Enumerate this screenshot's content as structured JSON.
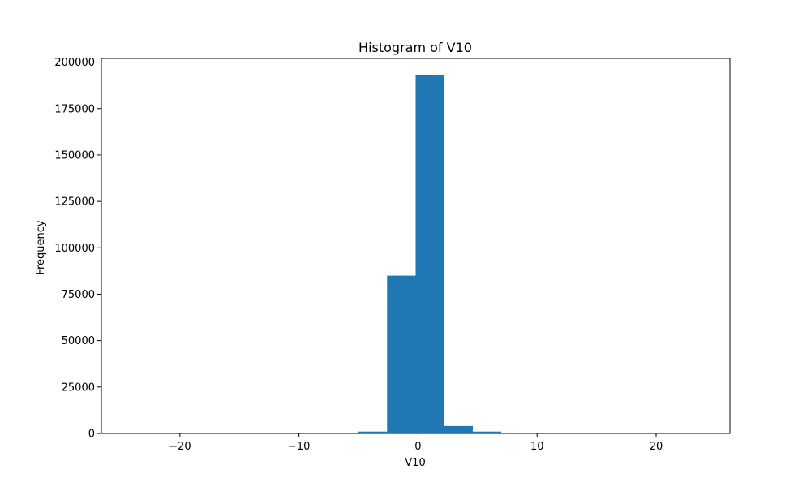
{
  "chart_data": {
    "type": "bar",
    "subtype": "histogram",
    "title": "Histogram of V10",
    "xlabel": "V10",
    "ylabel": "Frequency",
    "xlim": [
      -26.6,
      26.2
    ],
    "ylim": [
      0,
      202000
    ],
    "xticks": [
      -20,
      -10,
      0,
      10,
      20
    ],
    "xtick_labels": [
      "−20",
      "−10",
      "0",
      "10",
      "20"
    ],
    "yticks": [
      0,
      25000,
      50000,
      75000,
      100000,
      125000,
      150000,
      175000,
      200000
    ],
    "ytick_labels": [
      "0",
      "25000",
      "50000",
      "75000",
      "100000",
      "125000",
      "150000",
      "175000",
      "200000"
    ],
    "grid": false,
    "bar_color": "#1f77b4",
    "bins": [
      {
        "x0": -24.2,
        "x1": -21.8,
        "value": 0
      },
      {
        "x0": -21.8,
        "x1": -19.4,
        "value": 0
      },
      {
        "x0": -19.4,
        "x1": -17.0,
        "value": 0
      },
      {
        "x0": -17.0,
        "x1": -14.6,
        "value": 0
      },
      {
        "x0": -14.6,
        "x1": -12.2,
        "value": 0
      },
      {
        "x0": -12.2,
        "x1": -9.8,
        "value": 0
      },
      {
        "x0": -9.8,
        "x1": -7.4,
        "value": 0
      },
      {
        "x0": -7.4,
        "x1": -5.0,
        "value": 50
      },
      {
        "x0": -5.0,
        "x1": -2.6,
        "value": 1000
      },
      {
        "x0": -2.6,
        "x1": -0.2,
        "value": 85000
      },
      {
        "x0": -0.2,
        "x1": 2.2,
        "value": 193000
      },
      {
        "x0": 2.2,
        "x1": 4.6,
        "value": 4000
      },
      {
        "x0": 4.6,
        "x1": 7.0,
        "value": 1000
      },
      {
        "x0": 7.0,
        "x1": 9.4,
        "value": 400
      },
      {
        "x0": 9.4,
        "x1": 11.8,
        "value": 50
      },
      {
        "x0": 11.8,
        "x1": 14.2,
        "value": 20
      },
      {
        "x0": 14.2,
        "x1": 16.6,
        "value": 10
      },
      {
        "x0": 16.6,
        "x1": 19.0,
        "value": 5
      },
      {
        "x0": 19.0,
        "x1": 21.4,
        "value": 2
      },
      {
        "x0": 21.4,
        "x1": 23.8,
        "value": 1
      }
    ]
  }
}
